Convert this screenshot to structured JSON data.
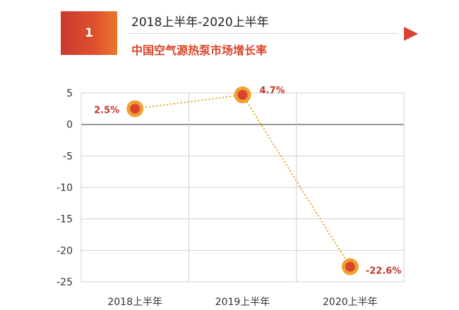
{
  "header": {
    "badge": "1",
    "period": "2018上半年-2020上半年",
    "title": "中国空气源热泵市场增长率"
  },
  "chart_data": {
    "type": "line",
    "title": "中国空气源热泵市场增长率",
    "categories": [
      "2018上半年",
      "2019上半年",
      "2020上半年"
    ],
    "series": [
      {
        "values": [
          2.5,
          4.7,
          -22.6
        ],
        "labels": [
          "2.5%",
          "4.7%",
          "-22.6%"
        ]
      }
    ],
    "ylim": [
      -25,
      5
    ],
    "yticks": [
      5,
      0,
      -5,
      -10,
      -15,
      -20,
      -25
    ],
    "xlabel": "",
    "ylabel": "",
    "grid": true,
    "colors": {
      "line": "#e8a020",
      "marker_outer": "#f0a030",
      "marker_inner": "#d9442f",
      "label": "#c0392b",
      "zero_line": "#777777",
      "grid": "#d0d0d0"
    }
  }
}
